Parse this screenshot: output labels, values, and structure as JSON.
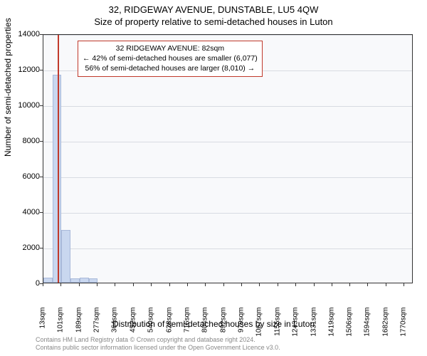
{
  "title_main": "32, RIDGEWAY AVENUE, DUNSTABLE, LU5 4QW",
  "title_sub": "Size of property relative to semi-detached houses in Luton",
  "ylabel": "Number of semi-detached properties",
  "xlabel": "Distribution of semi-detached houses by size in Luton",
  "chart": {
    "type": "histogram",
    "background_color": "#f8f9fb",
    "grid_color": "#d8dbe2",
    "bar_fill": "#c9d7ef",
    "bar_border": "#a9b9d9",
    "marker_color": "#c0392b",
    "ylim": [
      0,
      14000
    ],
    "yticks": [
      0,
      2000,
      4000,
      6000,
      8000,
      10000,
      12000,
      14000
    ],
    "xticks": [
      "13sqm",
      "101sqm",
      "189sqm",
      "277sqm",
      "364sqm",
      "452sqm",
      "540sqm",
      "628sqm",
      "716sqm",
      "804sqm",
      "892sqm",
      "979sqm",
      "1067sqm",
      "1155sqm",
      "1243sqm",
      "1331sqm",
      "1419sqm",
      "1506sqm",
      "1594sqm",
      "1682sqm",
      "1770sqm"
    ],
    "xtick_values": [
      13,
      101,
      189,
      277,
      364,
      452,
      540,
      628,
      716,
      804,
      892,
      979,
      1067,
      1155,
      1243,
      1331,
      1419,
      1506,
      1594,
      1682,
      1770
    ],
    "xlim": [
      13,
      1814
    ],
    "bars": [
      {
        "x0": 13,
        "x1": 57,
        "y": 300
      },
      {
        "x0": 57,
        "x1": 101,
        "y": 11700
      },
      {
        "x0": 101,
        "x1": 145,
        "y": 2950
      },
      {
        "x0": 145,
        "x1": 189,
        "y": 250
      },
      {
        "x0": 189,
        "x1": 233,
        "y": 280
      },
      {
        "x0": 233,
        "x1": 277,
        "y": 260
      }
    ],
    "marker_x": 82
  },
  "annotation": {
    "line1": "32 RIDGEWAY AVENUE: 82sqm",
    "line2": "← 42% of semi-detached houses are smaller (6,077)",
    "line3": "56% of semi-detached houses are larger (8,010) →"
  },
  "footer": {
    "line1": "Contains HM Land Registry data © Crown copyright and database right 2024.",
    "line2": "Contains public sector information licensed under the Open Government Licence v3.0."
  },
  "style": {
    "title_fontsize": 13,
    "label_fontsize": 12,
    "tick_fontsize": 11,
    "annotation_fontsize": 10.5,
    "footer_fontsize": 9,
    "font_family": "Arial, sans-serif"
  }
}
